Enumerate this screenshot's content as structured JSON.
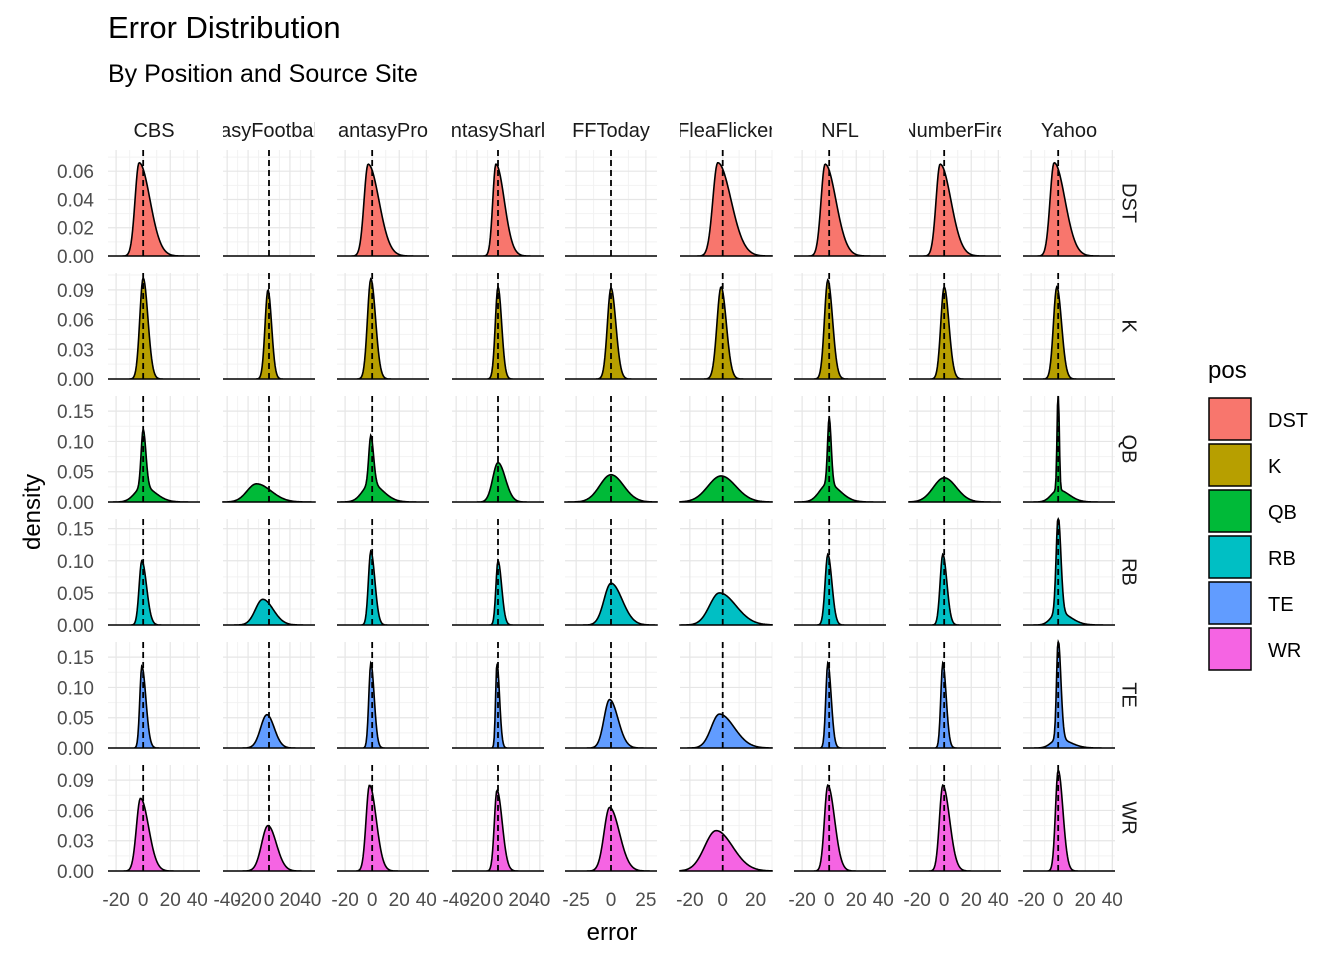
{
  "chart_data": {
    "type": "density",
    "title": "Error Distribution",
    "subtitle": "By Position and Source Site",
    "xlabel": "error",
    "ylabel": "density",
    "legend_title": "pos",
    "legend_position": "right",
    "grid": true,
    "facet_columns": [
      "CBS",
      "FantasyFootballNerd",
      "FantasyPros",
      "FantasySharks",
      "FFToday",
      "FleaFlicker",
      "NFL",
      "NumberFire",
      "Yahoo"
    ],
    "facet_column_labels_visible": [
      "CBS",
      "asyFootbal",
      "antasyPro",
      "ntasySharl",
      "FFToday",
      "FleaFlicker",
      "NFL",
      "NumberFire",
      "Yahoo"
    ],
    "facet_rows": [
      "DST",
      "K",
      "QB",
      "RB",
      "TE",
      "WR"
    ],
    "colors": {
      "DST": "#F8766D",
      "K": "#B79F00",
      "QB": "#00BA38",
      "RB": "#00BFC4",
      "TE": "#619CFF",
      "WR": "#F564E3"
    },
    "y_axes": {
      "DST": {
        "ylim": [
          0,
          0.075
        ],
        "ticks": [
          "0.00",
          "0.02",
          "0.04",
          "0.06"
        ],
        "tick_values": [
          0,
          0.02,
          0.04,
          0.06
        ]
      },
      "K": {
        "ylim": [
          0,
          0.107
        ],
        "ticks": [
          "0.00",
          "0.03",
          "0.06",
          "0.09"
        ],
        "tick_values": [
          0,
          0.03,
          0.06,
          0.09
        ]
      },
      "QB": {
        "ylim": [
          0,
          0.175
        ],
        "ticks": [
          "0.00",
          "0.05",
          "0.10",
          "0.15"
        ],
        "tick_values": [
          0,
          0.05,
          0.1,
          0.15
        ]
      },
      "RB": {
        "ylim": [
          0,
          0.165
        ],
        "ticks": [
          "0.00",
          "0.05",
          "0.10",
          "0.15"
        ],
        "tick_values": [
          0,
          0.05,
          0.1,
          0.15
        ]
      },
      "TE": {
        "ylim": [
          0,
          0.175
        ],
        "ticks": [
          "0.00",
          "0.05",
          "0.10",
          "0.15"
        ],
        "tick_values": [
          0,
          0.05,
          0.1,
          0.15
        ]
      },
      "WR": {
        "ylim": [
          0,
          0.105
        ],
        "ticks": [
          "0.00",
          "0.03",
          "0.06",
          "0.09"
        ],
        "tick_values": [
          0,
          0.03,
          0.06,
          0.09
        ]
      }
    },
    "x_axes": {
      "CBS": {
        "xlim": [
          -26,
          42
        ],
        "ticks": [
          "-20",
          "0",
          "20",
          "40"
        ],
        "tick_values": [
          -20,
          0,
          20,
          40
        ]
      },
      "FantasyFootballNerd": {
        "xlim": [
          -44,
          44
        ],
        "ticks": [
          "-40",
          "-20",
          "0",
          "20",
          "40"
        ],
        "tick_values": [
          -40,
          -20,
          0,
          20,
          40
        ]
      },
      "FantasyPros": {
        "xlim": [
          -26,
          42
        ],
        "ticks": [
          "-20",
          "0",
          "20",
          "40"
        ],
        "tick_values": [
          -20,
          0,
          20,
          40
        ]
      },
      "FantasySharks": {
        "xlim": [
          -44,
          44
        ],
        "ticks": [
          "-40",
          "-20",
          "0",
          "20",
          "40"
        ],
        "tick_values": [
          -40,
          -20,
          0,
          20,
          40
        ]
      },
      "FFToday": {
        "xlim": [
          -33,
          33
        ],
        "ticks": [
          "-25",
          "0",
          "25"
        ],
        "tick_values": [
          -25,
          0,
          25
        ]
      },
      "FleaFlicker": {
        "xlim": [
          -26,
          30
        ],
        "ticks": [
          "-20",
          "0",
          "20"
        ],
        "tick_values": [
          -20,
          0,
          20
        ]
      },
      "NFL": {
        "xlim": [
          -26,
          42
        ],
        "ticks": [
          "-20",
          "0",
          "20",
          "40"
        ],
        "tick_values": [
          -20,
          0,
          20,
          40
        ]
      },
      "NumberFire": {
        "xlim": [
          -26,
          42
        ],
        "ticks": [
          "-20",
          "0",
          "20",
          "40"
        ],
        "tick_values": [
          -20,
          0,
          20,
          40
        ]
      },
      "Yahoo": {
        "xlim": [
          -26,
          42
        ],
        "ticks": [
          "-20",
          "0",
          "20",
          "40"
        ],
        "tick_values": [
          -20,
          0,
          20,
          40
        ]
      }
    },
    "vline": 0,
    "densities": {
      "DST": {
        "CBS": [
          {
            "mode": -3,
            "peak": 0.066,
            "sl": 3,
            "sr": 8
          }
        ],
        "FantasyFootballNerd": [],
        "FantasyPros": [
          {
            "mode": -3,
            "peak": 0.065,
            "sl": 3,
            "sr": 8
          }
        ],
        "FantasySharks": [
          {
            "mode": -2,
            "peak": 0.065,
            "sl": 3,
            "sr": 8
          }
        ],
        "FFToday": [],
        "FleaFlicker": [
          {
            "mode": -3,
            "peak": 0.066,
            "sl": 3,
            "sr": 8
          }
        ],
        "NFL": [
          {
            "mode": -3,
            "peak": 0.065,
            "sl": 3,
            "sr": 8
          }
        ],
        "NumberFire": [
          {
            "mode": -3,
            "peak": 0.065,
            "sl": 3,
            "sr": 8
          }
        ],
        "Yahoo": [
          {
            "mode": -3,
            "peak": 0.066,
            "sl": 3,
            "sr": 8
          }
        ]
      },
      "K": {
        "CBS": [
          {
            "mode": 0,
            "peak": 0.102,
            "sl": 2.5,
            "sr": 3.5
          }
        ],
        "FantasyFootballNerd": [
          {
            "mode": -1,
            "peak": 0.09,
            "sl": 2.8,
            "sr": 3.5
          }
        ],
        "FantasyPros": [
          {
            "mode": -1,
            "peak": 0.101,
            "sl": 2.5,
            "sr": 3.5
          }
        ],
        "FantasySharks": [
          {
            "mode": 0,
            "peak": 0.093,
            "sl": 2.6,
            "sr": 3.5
          }
        ],
        "FFToday": [
          {
            "mode": 0,
            "peak": 0.092,
            "sl": 2.6,
            "sr": 3.5
          }
        ],
        "FleaFlicker": [
          {
            "mode": -1,
            "peak": 0.093,
            "sl": 2.5,
            "sr": 3.2
          }
        ],
        "NFL": [
          {
            "mode": -1,
            "peak": 0.1,
            "sl": 2.5,
            "sr": 3.5
          }
        ],
        "NumberFire": [
          {
            "mode": 0,
            "peak": 0.093,
            "sl": 2.5,
            "sr": 3.5
          }
        ],
        "Yahoo": [
          {
            "mode": -1,
            "peak": 0.093,
            "sl": 2.5,
            "sr": 3.5
          }
        ]
      },
      "QB": {
        "CBS": [
          {
            "mode": 0,
            "peak": 0.095,
            "sl": 1.5,
            "sr": 2
          },
          {
            "mode": 0,
            "peak": 0.025,
            "sl": 6,
            "sr": 9
          }
        ],
        "FantasyFootballNerd": [
          {
            "mode": -12,
            "peak": 0.03,
            "sl": 9,
            "sr": 14
          }
        ],
        "FantasyPros": [
          {
            "mode": -1,
            "peak": 0.08,
            "sl": 1.5,
            "sr": 2
          },
          {
            "mode": -1,
            "peak": 0.03,
            "sl": 6,
            "sr": 9
          }
        ],
        "FantasySharks": [
          {
            "mode": 0,
            "peak": 0.065,
            "sl": 5,
            "sr": 7
          }
        ],
        "FFToday": [
          {
            "mode": 0,
            "peak": 0.045,
            "sl": 8,
            "sr": 9
          }
        ],
        "FleaFlicker": [
          {
            "mode": -1,
            "peak": 0.043,
            "sl": 8,
            "sr": 9
          }
        ],
        "NFL": [
          {
            "mode": 0,
            "peak": 0.11,
            "sl": 1.2,
            "sr": 1.5
          },
          {
            "mode": -1,
            "peak": 0.03,
            "sl": 6,
            "sr": 9
          }
        ],
        "NumberFire": [
          {
            "mode": 0,
            "peak": 0.04,
            "sl": 8,
            "sr": 9
          }
        ],
        "Yahoo": [
          {
            "mode": 0,
            "peak": 0.17,
            "sl": 0.8,
            "sr": 0.8
          },
          {
            "mode": 0,
            "peak": 0.02,
            "sl": 5,
            "sr": 8
          }
        ]
      },
      "RB": {
        "CBS": [
          {
            "mode": -1,
            "peak": 0.1,
            "sl": 2,
            "sr": 3.5
          }
        ],
        "FantasyFootballNerd": [
          {
            "mode": -6,
            "peak": 0.04,
            "sl": 7,
            "sr": 10
          }
        ],
        "FantasyPros": [
          {
            "mode": -1,
            "peak": 0.115,
            "sl": 1.8,
            "sr": 3
          }
        ],
        "FantasySharks": [
          {
            "mode": 0,
            "peak": 0.1,
            "sl": 2,
            "sr": 3.5
          }
        ],
        "FFToday": [
          {
            "mode": 0,
            "peak": 0.065,
            "sl": 5,
            "sr": 8
          }
        ],
        "FleaFlicker": [
          {
            "mode": -2,
            "peak": 0.05,
            "sl": 6,
            "sr": 10
          }
        ],
        "NFL": [
          {
            "mode": -1,
            "peak": 0.11,
            "sl": 2,
            "sr": 3
          }
        ],
        "NumberFire": [
          {
            "mode": -1,
            "peak": 0.11,
            "sl": 2,
            "sr": 3
          }
        ],
        "Yahoo": [
          {
            "mode": 0,
            "peak": 0.15,
            "sl": 1.5,
            "sr": 2
          },
          {
            "mode": 0,
            "peak": 0.02,
            "sl": 5,
            "sr": 9
          }
        ]
      },
      "TE": {
        "CBS": [
          {
            "mode": -1,
            "peak": 0.135,
            "sl": 1.5,
            "sr": 3
          }
        ],
        "FantasyFootballNerd": [
          {
            "mode": -2,
            "peak": 0.055,
            "sl": 6,
            "sr": 7
          }
        ],
        "FantasyPros": [
          {
            "mode": -1,
            "peak": 0.14,
            "sl": 1.5,
            "sr": 2.5
          }
        ],
        "FantasySharks": [
          {
            "mode": -1,
            "peak": 0.14,
            "sl": 1.3,
            "sr": 2.5
          }
        ],
        "FFToday": [
          {
            "mode": -1,
            "peak": 0.08,
            "sl": 4,
            "sr": 6
          }
        ],
        "FleaFlicker": [
          {
            "mode": -2,
            "peak": 0.056,
            "sl": 5,
            "sr": 9
          }
        ],
        "NFL": [
          {
            "mode": -1,
            "peak": 0.14,
            "sl": 1.5,
            "sr": 2.5
          }
        ],
        "NumberFire": [
          {
            "mode": -1,
            "peak": 0.14,
            "sl": 1.5,
            "sr": 2.5
          }
        ],
        "Yahoo": [
          {
            "mode": 0,
            "peak": 0.165,
            "sl": 1.2,
            "sr": 2
          },
          {
            "mode": 0,
            "peak": 0.015,
            "sl": 5,
            "sr": 9
          }
        ]
      },
      "WR": {
        "CBS": [
          {
            "mode": -2,
            "peak": 0.072,
            "sl": 3,
            "sr": 6
          }
        ],
        "FantasyFootballNerd": [
          {
            "mode": -1,
            "peak": 0.045,
            "sl": 6,
            "sr": 8
          }
        ],
        "FantasyPros": [
          {
            "mode": -2,
            "peak": 0.085,
            "sl": 2.5,
            "sr": 5
          }
        ],
        "FantasySharks": [
          {
            "mode": -1,
            "peak": 0.08,
            "sl": 2.5,
            "sr": 5
          }
        ],
        "FFToday": [
          {
            "mode": -1,
            "peak": 0.063,
            "sl": 4,
            "sr": 7
          }
        ],
        "FleaFlicker": [
          {
            "mode": -4,
            "peak": 0.04,
            "sl": 7,
            "sr": 10
          }
        ],
        "NFL": [
          {
            "mode": -1,
            "peak": 0.085,
            "sl": 2.5,
            "sr": 5
          }
        ],
        "NumberFire": [
          {
            "mode": -1,
            "peak": 0.085,
            "sl": 2.5,
            "sr": 5
          }
        ],
        "Yahoo": [
          {
            "mode": 0,
            "peak": 0.1,
            "sl": 2,
            "sr": 3.5
          }
        ]
      }
    }
  }
}
